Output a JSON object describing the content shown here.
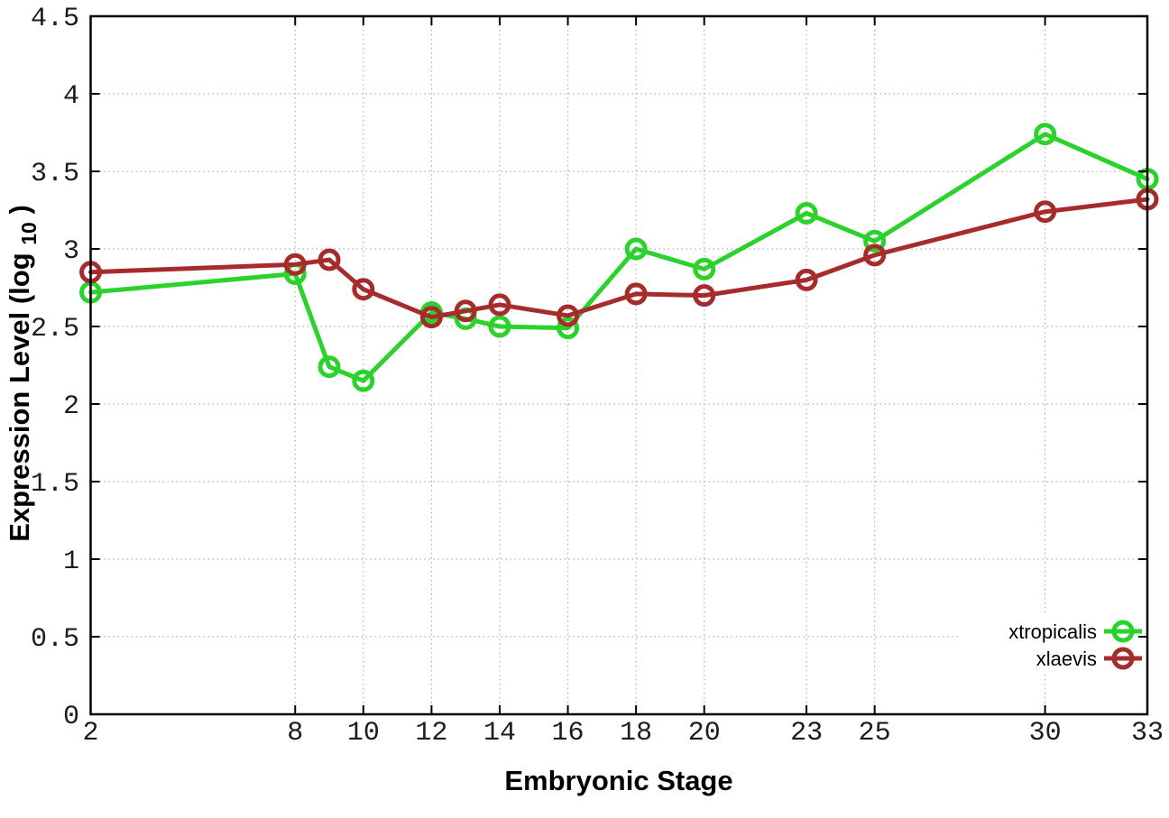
{
  "chart_data": {
    "type": "line",
    "title": "",
    "xlabel": "Embryonic Stage",
    "ylabel": "Expression Level (log10)",
    "ylabel_parts": {
      "pre": "Expression Level (log",
      "sub": "10",
      "post": ")"
    },
    "xlim": [
      2,
      33
    ],
    "ylim": [
      0,
      4.5
    ],
    "grid": true,
    "legend_position": "bottom-right",
    "x": [
      2,
      8,
      9,
      10,
      12,
      13,
      14,
      16,
      18,
      20,
      23,
      25,
      30,
      33
    ],
    "xticks": [
      2,
      8,
      10,
      12,
      14,
      16,
      18,
      20,
      23,
      25,
      30,
      33
    ],
    "xtick_labels": [
      "2",
      "8",
      "10",
      "12",
      "14",
      "16",
      "18",
      "20",
      "23",
      "25",
      "30",
      "33"
    ],
    "yticks": [
      0,
      0.5,
      1,
      1.5,
      2,
      2.5,
      3,
      3.5,
      4,
      4.5
    ],
    "ytick_labels": [
      "0",
      "0.5",
      "1",
      "1.5",
      "2",
      "2.5",
      "3",
      "3.5",
      "4",
      "4.5"
    ],
    "series": [
      {
        "name": "xtropicalis",
        "color": "#2bd22b",
        "marker": "open-circle",
        "values": [
          2.72,
          2.84,
          2.24,
          2.15,
          2.59,
          2.55,
          2.5,
          2.49,
          3.0,
          2.87,
          3.23,
          3.05,
          3.74,
          3.45
        ]
      },
      {
        "name": "xlaevis",
        "color": "#a62c2c",
        "marker": "open-circle",
        "values": [
          2.85,
          2.9,
          2.93,
          2.74,
          2.56,
          2.6,
          2.64,
          2.57,
          2.71,
          2.7,
          2.8,
          2.96,
          3.24,
          3.32
        ]
      }
    ]
  },
  "colors": {
    "background": "#ffffff",
    "grid": "#b0b0b0",
    "border": "#000000",
    "tick_label": "#1c1c1c"
  }
}
